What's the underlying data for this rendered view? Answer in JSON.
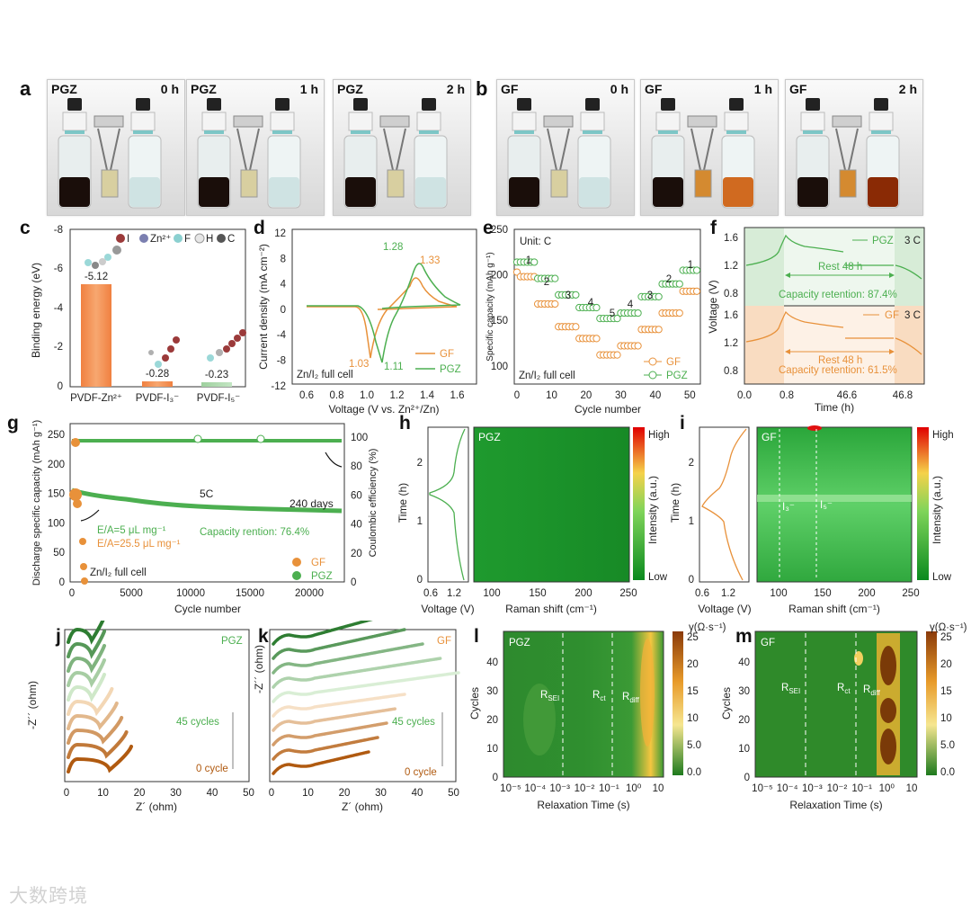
{
  "panels": {
    "a": "a",
    "b": "b",
    "c": "c",
    "d": "d",
    "e": "e",
    "f": "f",
    "g": "g",
    "h": "h",
    "i": "i",
    "j": "j",
    "k": "k",
    "l": "l",
    "m": "m"
  },
  "photos": [
    {
      "tag": "PGZ",
      "time": "0 h",
      "liquid": "clear"
    },
    {
      "tag": "PGZ",
      "time": "1 h",
      "liquid": "clear"
    },
    {
      "tag": "PGZ",
      "time": "2 h",
      "liquid": "clear"
    },
    {
      "tag": "GF",
      "time": "0 h",
      "liquid": "clear"
    },
    {
      "tag": "GF",
      "time": "1 h",
      "liquid": "light"
    },
    {
      "tag": "GF",
      "time": "2 h",
      "liquid": "dark"
    }
  ],
  "colors": {
    "gf": "#e8913a",
    "pgz": "#4caf50",
    "green_dark": "#2e7d32",
    "orange_dark": "#b05a10"
  },
  "c": {
    "ylabel": "Binding energy (eV)",
    "yticks": [
      "-8",
      "-6",
      "-4",
      "-2",
      "0"
    ],
    "legend": [
      "I",
      "Zn²⁺",
      "F",
      "H",
      "C"
    ],
    "bars": [
      {
        "name": "PVDF-Zn²⁺",
        "value": -5.12,
        "label": "-5.12"
      },
      {
        "name": "PVDF-I₃⁻",
        "value": -0.28,
        "label": "-0.28"
      },
      {
        "name": "PVDF-I₅⁻",
        "value": -0.23,
        "label": "-0.23"
      }
    ]
  },
  "d": {
    "xlabel": "Voltage (V vs. Zn²⁺/Zn)",
    "ylabel": "Current density (mA cm⁻²)",
    "xticks": [
      "0.6",
      "0.8",
      "1.0",
      "1.2",
      "1.4",
      "1.6"
    ],
    "yticks": [
      "12",
      "8",
      "4",
      "0",
      "-4",
      "-8",
      "-12"
    ],
    "note": "Zn/I₂ full cell",
    "legend": [
      "GF",
      "PGZ"
    ],
    "peaks": {
      "pgz_ox": "1.28",
      "gf_ox": "1.33",
      "gf_red": "1.03",
      "pgz_red": "1.11"
    }
  },
  "e": {
    "xlabel": "Cycle number",
    "ylabel": "Specific capacity (mAh g⁻¹)",
    "xticks": [
      "0",
      "10",
      "20",
      "30",
      "40",
      "50"
    ],
    "yticks": [
      "100",
      "150",
      "200",
      "250"
    ],
    "unit": "Unit: C",
    "note": "Zn/I₂ full cell",
    "legend": [
      "GF",
      "PGZ"
    ],
    "rates": [
      "1",
      "2",
      "3",
      "4",
      "5",
      "4",
      "3",
      "2",
      "1"
    ]
  },
  "f": {
    "xlabel": "Time (h)",
    "ylabel": "Voltage (V)",
    "xticks": [
      "0.0",
      "0.8",
      "46.6",
      "46.8"
    ],
    "yticks_top": [
      "1.6",
      "1.2",
      "0.8"
    ],
    "yticks_bottom": [
      "1.6",
      "1.2",
      "0.8"
    ],
    "top": {
      "name": "PGZ",
      "rate": "3 C",
      "rest": "Rest 48 h",
      "retention": "Capacity retention: 87.4%"
    },
    "bottom": {
      "name": "GF",
      "rate": "3 C",
      "rest": "Rest 48 h",
      "retention": "Capacity retention: 61.5%"
    }
  },
  "g": {
    "xlabel": "Cycle number",
    "ylabel": "Discharge specific capacity (mAh g⁻¹)",
    "y2label": "Coulombic efficiency (%)",
    "xticks": [
      "0",
      "5000",
      "10000",
      "15000",
      "20000"
    ],
    "yticks": [
      "0",
      "50",
      "100",
      "150",
      "200",
      "250"
    ],
    "y2ticks": [
      "0",
      "20",
      "40",
      "60",
      "80",
      "100"
    ],
    "rate": "5C",
    "days": "240 days",
    "retention": "Capacity rention: 76.4%",
    "ea1": "E/A=5 μL mg⁻¹",
    "ea2": "E/A=25.5 μL mg⁻¹",
    "note": "Zn/I₂ full cell",
    "legend": [
      "GF",
      "PGZ"
    ]
  },
  "h": {
    "tag": "PGZ",
    "ylabel": "Time (h)",
    "xlabel": "Voltage (V)",
    "xlabel2": "Raman shift (cm⁻¹)",
    "yticks": [
      "0",
      "1",
      "2"
    ],
    "xticks": [
      "0.6",
      "1.2"
    ],
    "xticks2": [
      "100",
      "150",
      "200",
      "250"
    ],
    "cbar": "Intensity (a.u.)",
    "high": "High",
    "low": "Low"
  },
  "i": {
    "tag": "GF",
    "ylabel": "Time (h)",
    "xlabel": "Voltage (V)",
    "xlabel2": "Raman shift (cm⁻¹)",
    "yticks": [
      "0",
      "1",
      "2"
    ],
    "xticks": [
      "0.6",
      "1.2"
    ],
    "xticks2": [
      "100",
      "150",
      "200",
      "250"
    ],
    "cbar": "Intensity (a.u.)",
    "high": "High",
    "low": "Low",
    "i3": "I₃⁻",
    "i5": "I₅⁻"
  },
  "j": {
    "tag": "PGZ",
    "xlabel": "Z´ (ohm)",
    "ylabel": "-Z´´ (ohm)",
    "xticks": [
      "0",
      "10",
      "20",
      "30",
      "40",
      "50"
    ],
    "top": "45 cycles",
    "bottom": "0 cycle"
  },
  "k": {
    "tag": "GF",
    "xlabel": "Z´ (ohm)",
    "ylabel": "-Z´´ (ohm)",
    "xticks": [
      "0",
      "10",
      "20",
      "30",
      "40",
      "50"
    ],
    "top": "45 cycles",
    "bottom": "0 cycle"
  },
  "l": {
    "tag": "PGZ",
    "xlabel": "Relaxation Time (s)",
    "ylabel": "Cycles",
    "yticks": [
      "0",
      "10",
      "20",
      "30",
      "40"
    ],
    "xticks": [
      "10⁻⁵",
      "10⁻⁴",
      "10⁻³",
      "10⁻²",
      "10⁻¹",
      "10⁰",
      "10"
    ],
    "cbar": "γ(Ω·s⁻¹)",
    "cticks": [
      "25",
      "20",
      "15",
      "10",
      "5.0",
      "0.0"
    ],
    "r1": "R",
    "r1s": "SEI",
    "r2": "R",
    "r2s": "ct",
    "r3": "R",
    "r3s": "diff"
  },
  "m": {
    "tag": "GF",
    "xlabel": "Relaxation Time (s)",
    "ylabel": "Cycles",
    "yticks": [
      "0",
      "10",
      "20",
      "30",
      "40"
    ],
    "xticks": [
      "10⁻⁵",
      "10⁻⁴",
      "10⁻³",
      "10⁻²",
      "10⁻¹",
      "10⁰",
      "10"
    ],
    "cbar": "γ(Ω·s⁻¹)",
    "cticks": [
      "25",
      "20",
      "15",
      "10",
      "5.0",
      "0.0"
    ],
    "r1": "R",
    "r1s": "SEI",
    "r2": "R",
    "r2s": "ct",
    "r3": "R",
    "r3s": "diff"
  },
  "watermark": "大数跨境"
}
